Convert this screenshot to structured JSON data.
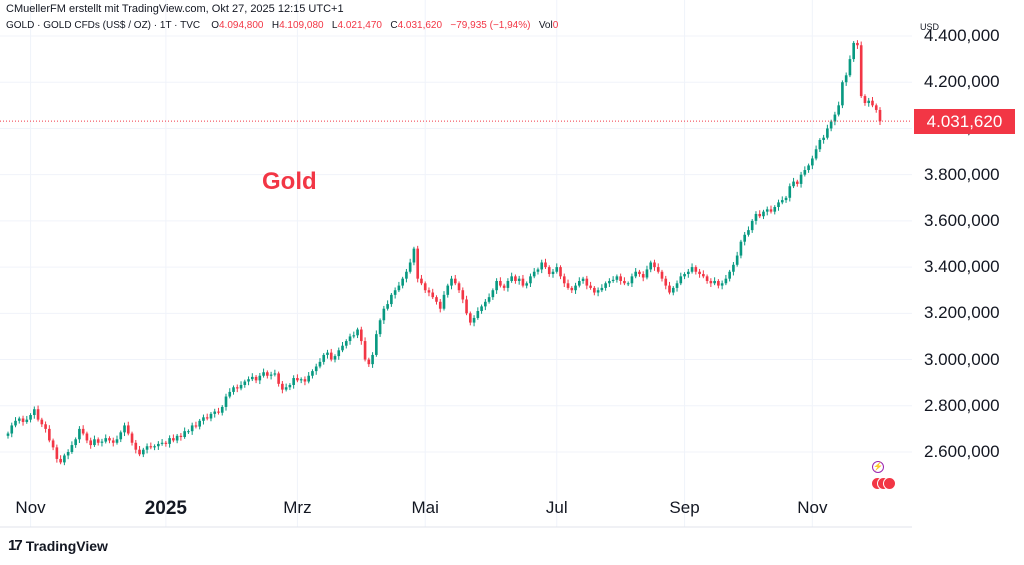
{
  "header": {
    "credit": "CMuellerFM erstellt mit TradingView.com, Okt 27, 2025 12:15 UTC+1",
    "symbol": "GOLD · GOLD CFDs (US$ / OZ) · 1T · TVC",
    "open_label": "O",
    "open": "4.094,800",
    "high_label": "H",
    "high": "4.109,080",
    "low_label": "L",
    "low": "4.021,470",
    "close_label": "C",
    "close": "4.031,620",
    "change": "−79,935 (−1,94%)",
    "vol_label": "Vol",
    "vol": "0"
  },
  "axis": {
    "currency": "USD",
    "price_badge": "4.031,620"
  },
  "title": "Gold",
  "brand": {
    "logo_glyph": "17",
    "name": "TradingView"
  },
  "colors": {
    "up": "#089981",
    "down": "#f23645",
    "grid": "#f0f3fa",
    "text": "#131722"
  },
  "chart_data": {
    "type": "candlestick",
    "y_ticks": [
      "2.600,000",
      "2.800,000",
      "3.000,000",
      "3.200,000",
      "3.400,000",
      "3.600,000",
      "3.800,000",
      "4.000,000",
      "4.200,000",
      "4.400,000"
    ],
    "y_tick_values": [
      2600,
      2800,
      3000,
      3200,
      3400,
      3600,
      3800,
      4000,
      4200,
      4400
    ],
    "x_ticks": [
      "Nov",
      "2025",
      "Mrz",
      "Mai",
      "Jul",
      "Sep",
      "Nov"
    ],
    "x_tick_bold": [
      false,
      true,
      false,
      false,
      false,
      false,
      false
    ],
    "x_tick_index": [
      6,
      42,
      77,
      111,
      146,
      180,
      214
    ],
    "last_price": 4031.62,
    "closes": [
      2680,
      2715,
      2735,
      2745,
      2730,
      2740,
      2760,
      2785,
      2740,
      2720,
      2700,
      2650,
      2620,
      2570,
      2555,
      2585,
      2600,
      2630,
      2655,
      2700,
      2680,
      2650,
      2630,
      2655,
      2640,
      2645,
      2660,
      2650,
      2640,
      2655,
      2685,
      2715,
      2680,
      2640,
      2610,
      2590,
      2610,
      2625,
      2620,
      2625,
      2635,
      2640,
      2635,
      2660,
      2650,
      2670,
      2665,
      2690,
      2690,
      2715,
      2710,
      2735,
      2750,
      2745,
      2765,
      2775,
      2770,
      2795,
      2840,
      2860,
      2880,
      2875,
      2890,
      2905,
      2915,
      2925,
      2910,
      2930,
      2945,
      2930,
      2935,
      2940,
      2895,
      2870,
      2880,
      2890,
      2920,
      2910,
      2915,
      2905,
      2930,
      2950,
      2970,
      2990,
      3020,
      3030,
      3000,
      3015,
      3040,
      3060,
      3080,
      3100,
      3105,
      3130,
      3080,
      3000,
      2980,
      3020,
      3110,
      3170,
      3220,
      3240,
      3280,
      3300,
      3320,
      3350,
      3380,
      3420,
      3480,
      3350,
      3330,
      3300,
      3290,
      3270,
      3250,
      3220,
      3280,
      3320,
      3350,
      3330,
      3300,
      3260,
      3200,
      3160,
      3180,
      3210,
      3230,
      3250,
      3270,
      3300,
      3340,
      3320,
      3310,
      3340,
      3360,
      3340,
      3350,
      3320,
      3330,
      3360,
      3380,
      3390,
      3420,
      3400,
      3370,
      3380,
      3400,
      3360,
      3330,
      3310,
      3300,
      3320,
      3340,
      3350,
      3320,
      3310,
      3290,
      3300,
      3310,
      3330,
      3340,
      3345,
      3360,
      3340,
      3330,
      3330,
      3360,
      3380,
      3370,
      3355,
      3390,
      3420,
      3400,
      3380,
      3350,
      3320,
      3290,
      3310,
      3330,
      3360,
      3370,
      3380,
      3400,
      3380,
      3370,
      3360,
      3340,
      3330,
      3340,
      3320,
      3330,
      3350,
      3380,
      3410,
      3450,
      3510,
      3540,
      3560,
      3600,
      3630,
      3620,
      3640,
      3650,
      3640,
      3660,
      3680,
      3690,
      3700,
      3750,
      3770,
      3760,
      3800,
      3820,
      3840,
      3870,
      3910,
      3950,
      3960,
      4000,
      4030,
      4060,
      4100,
      4200,
      4230,
      4300,
      4370,
      4360,
      4140,
      4110,
      4120,
      4100,
      4080,
      4031
    ]
  }
}
